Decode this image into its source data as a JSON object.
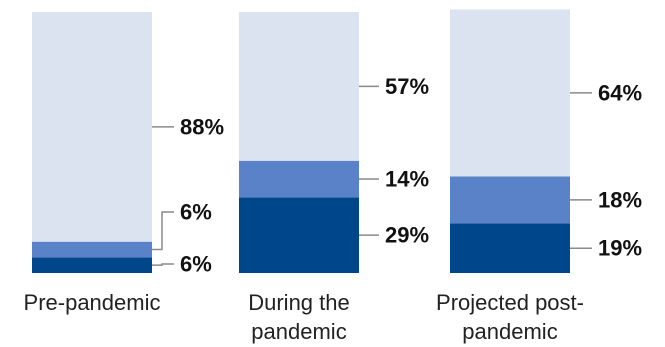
{
  "chart_data": {
    "type": "bar",
    "stacked": true,
    "normalized_percent": true,
    "categories": [
      "Pre-pandemic",
      "During the pandemic",
      "Projected post-pandemic"
    ],
    "category_label_lines": [
      [
        "Pre-pandemic"
      ],
      [
        "During the",
        "pandemic"
      ],
      [
        "Projected post-",
        "pandemic"
      ]
    ],
    "series": [
      {
        "values": [
          6,
          29,
          19
        ],
        "labels": [
          "6%",
          "29%",
          "19%"
        ],
        "color": "#00468b"
      },
      {
        "values": [
          6,
          14,
          18
        ],
        "labels": [
          "6%",
          "14%",
          "18%"
        ],
        "color": "#5a82c8"
      },
      {
        "values": [
          88,
          57,
          64
        ],
        "labels": [
          "88%",
          "57%",
          "64%"
        ],
        "color": "#dce3f0"
      }
    ],
    "title": "",
    "xlabel": "",
    "ylabel": "",
    "ylim": [
      0,
      100
    ],
    "grid": false,
    "legend": "none"
  }
}
